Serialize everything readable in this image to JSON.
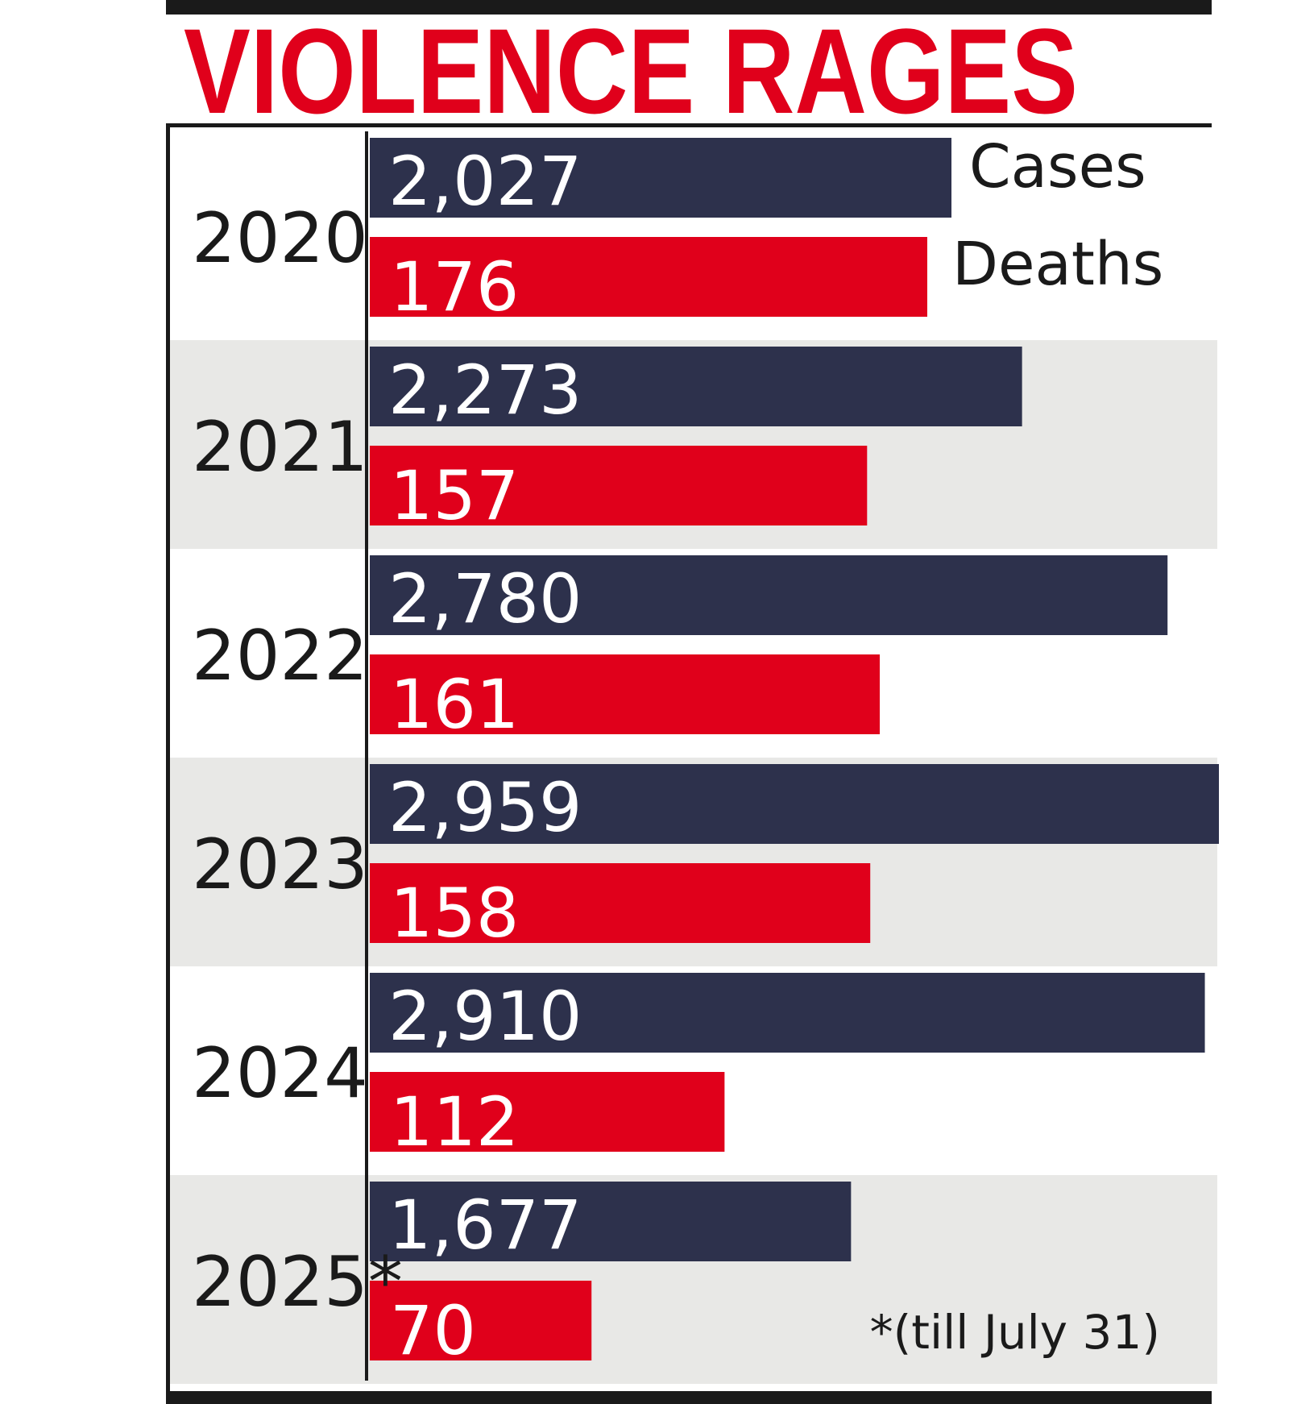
{
  "colors": {
    "cases": "#2d314c",
    "deaths": "#e0001b",
    "title": "#e0001b",
    "band_alt": "#e8e8e6",
    "frame": "#1a1a1a"
  },
  "chart_data": {
    "type": "bar",
    "orientation": "horizontal",
    "title": "VIOLENCE RAGES",
    "categories": [
      "2020",
      "2021",
      "2022",
      "2023",
      "2024",
      "2025*"
    ],
    "series": [
      {
        "name": "Cases",
        "values": [
          2027,
          2273,
          2780,
          2959,
          2910,
          1677
        ],
        "labels": [
          "2,027",
          "2,273",
          "2,780",
          "2,959",
          "2,910",
          "1,677"
        ],
        "color": "#2d314c"
      },
      {
        "name": "Deaths",
        "values": [
          176,
          157,
          161,
          158,
          112,
          70
        ],
        "labels": [
          "176",
          "157",
          "161",
          "158",
          "112",
          "70"
        ],
        "color": "#e0001b"
      }
    ],
    "legend": "top-right",
    "footnote": "*(till July 31)",
    "grid": false
  }
}
